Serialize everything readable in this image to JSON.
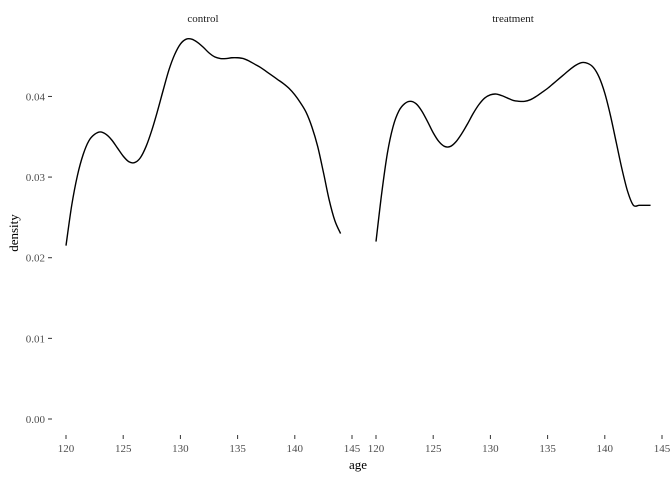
{
  "chart_data": {
    "type": "line",
    "xlabel": "age",
    "ylabel": "density",
    "xlim": [
      120,
      145
    ],
    "ylim": [
      0,
      0.047
    ],
    "x_ticks": [
      "120",
      "125",
      "130",
      "135",
      "140",
      "145"
    ],
    "y_ticks": [
      "0.00",
      "0.01",
      "0.02",
      "0.03",
      "0.04"
    ],
    "y_tick_values": [
      0.0,
      0.01,
      0.02,
      0.03,
      0.04
    ],
    "x_tick_values": [
      120,
      125,
      130,
      135,
      140,
      145
    ],
    "grid": false,
    "panels": [
      {
        "label": "control",
        "x": [
          120,
          120.5,
          121,
          121.5,
          122,
          122.5,
          123,
          123.5,
          124,
          124.5,
          125,
          125.5,
          126,
          126.5,
          127,
          127.5,
          128,
          128.5,
          129,
          129.5,
          130,
          130.5,
          131,
          131.5,
          132,
          132.5,
          133,
          133.5,
          134,
          134.5,
          135,
          135.5,
          136,
          136.5,
          137,
          137.5,
          138,
          138.5,
          139,
          139.5,
          140,
          140.5,
          141,
          141.5,
          142,
          142.5,
          143,
          143.5,
          144
        ],
        "y": [
          0.0215,
          0.0265,
          0.0302,
          0.0328,
          0.0345,
          0.0353,
          0.0356,
          0.0353,
          0.0346,
          0.0336,
          0.0326,
          0.0319,
          0.0318,
          0.0324,
          0.0338,
          0.0358,
          0.0382,
          0.0408,
          0.0433,
          0.0452,
          0.0465,
          0.0471,
          0.0471,
          0.0467,
          0.0461,
          0.0454,
          0.0449,
          0.0447,
          0.0447,
          0.0448,
          0.0448,
          0.0447,
          0.0444,
          0.044,
          0.0436,
          0.0431,
          0.0426,
          0.0421,
          0.0416,
          0.041,
          0.0402,
          0.0392,
          0.038,
          0.0362,
          0.0338,
          0.0306,
          0.0272,
          0.0246,
          0.023
        ]
      },
      {
        "label": "treatment",
        "x": [
          120,
          120.5,
          121,
          121.5,
          122,
          122.5,
          123,
          123.5,
          124,
          124.5,
          125,
          125.5,
          126,
          126.5,
          127,
          127.5,
          128,
          128.5,
          129,
          129.5,
          130,
          130.5,
          131,
          131.5,
          132,
          132.5,
          133,
          133.5,
          134,
          134.5,
          135,
          135.5,
          136,
          136.5,
          137,
          137.5,
          138,
          138.5,
          139,
          139.5,
          140,
          140.5,
          141,
          141.5,
          142,
          142.5,
          143,
          143.5,
          144
        ],
        "y": [
          0.022,
          0.028,
          0.033,
          0.0363,
          0.0382,
          0.0391,
          0.0394,
          0.0391,
          0.0382,
          0.0369,
          0.0355,
          0.0344,
          0.0338,
          0.0338,
          0.0344,
          0.0354,
          0.0366,
          0.0379,
          0.039,
          0.0398,
          0.0402,
          0.0403,
          0.0401,
          0.0398,
          0.0395,
          0.0394,
          0.0394,
          0.0396,
          0.04,
          0.0405,
          0.041,
          0.0416,
          0.0422,
          0.0428,
          0.0434,
          0.0439,
          0.0442,
          0.0441,
          0.0436,
          0.0424,
          0.0404,
          0.0376,
          0.0343,
          0.031,
          0.0282,
          0.0265,
          0.0265,
          0.0265,
          0.0265
        ]
      }
    ]
  }
}
